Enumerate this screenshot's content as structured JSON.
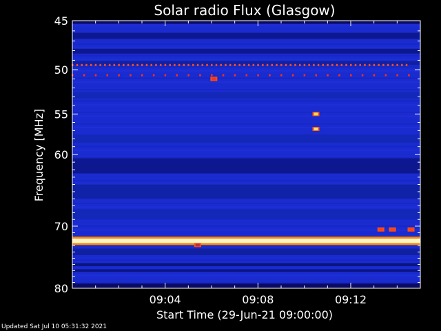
{
  "chart_data": {
    "type": "heatmap",
    "title": "Solar radio Flux (Glasgow)",
    "xlabel": "Start Time (29-Jun-21 09:00:00)",
    "ylabel": "Frequency [MHz]",
    "x_ticks": [
      "09:04",
      "09:08",
      "09:12"
    ],
    "x_tick_minutes": [
      4,
      8,
      12
    ],
    "x_range_minutes": [
      0,
      15
    ],
    "y_ticks": [
      45,
      50,
      55,
      60,
      70,
      80
    ],
    "y_range": [
      45,
      80
    ],
    "y_scale": "log",
    "background_color": "#1a2bd0",
    "bands": [
      {
        "freq_start": 45.0,
        "freq_end": 45.3,
        "color": "#0a0a60"
      },
      {
        "freq_start": 46.2,
        "freq_end": 46.8,
        "color": "#0d1890"
      },
      {
        "freq_start": 47.8,
        "freq_end": 48.3,
        "color": "#0d1890"
      },
      {
        "freq_start": 49.1,
        "freq_end": 49.5,
        "color": "#1020a0"
      },
      {
        "freq_start": 52.5,
        "freq_end": 53.2,
        "color": "#1428b8"
      },
      {
        "freq_start": 57.5,
        "freq_end": 58.5,
        "color": "#1428b8"
      },
      {
        "freq_start": 60.5,
        "freq_end": 62.5,
        "color": "#0d1890"
      },
      {
        "freq_start": 64.0,
        "freq_end": 66.0,
        "color": "#1022a8"
      },
      {
        "freq_start": 67.5,
        "freq_end": 69.0,
        "color": "#1428b8"
      },
      {
        "freq_start": 73.5,
        "freq_end": 74.5,
        "color": "#1020a0"
      },
      {
        "freq_start": 75.8,
        "freq_end": 76.3,
        "color": "#0a1480"
      },
      {
        "freq_start": 76.8,
        "freq_end": 77.2,
        "color": "#0a1480"
      },
      {
        "freq_start": 79.2,
        "freq_end": 80.0,
        "color": "#0a0a60"
      }
    ],
    "bright_lines": [
      {
        "freq_start": 71.9,
        "freq_end": 72.6,
        "color": "#fff6c8"
      },
      {
        "freq_start": 71.6,
        "freq_end": 71.9,
        "color": "#ff8800"
      },
      {
        "freq_start": 72.6,
        "freq_end": 72.9,
        "color": "#ff8800"
      }
    ],
    "dotted_lines": [
      {
        "freq": 49.5,
        "t_start": 0.0,
        "t_end": 14.5,
        "spacing_minutes": 0.2,
        "color": "#ff5020"
      },
      {
        "freq": 50.6,
        "t_start": 0.0,
        "t_end": 14.5,
        "spacing_minutes": 0.5,
        "color": "#ff3010"
      }
    ],
    "spots": [
      {
        "t": 10.5,
        "freq": 55.0,
        "color": "#ffe060"
      },
      {
        "t": 10.5,
        "freq": 56.8,
        "color": "#ffe060"
      },
      {
        "t": 13.3,
        "freq": 70.5,
        "color": "#ff4020"
      },
      {
        "t": 13.8,
        "freq": 70.5,
        "color": "#ff4020"
      },
      {
        "t": 14.6,
        "freq": 70.5,
        "color": "#ff4020"
      },
      {
        "t": 6.1,
        "freq": 51.0,
        "color": "#ff3010"
      },
      {
        "t": 5.4,
        "freq": 72.9,
        "color": "#c03030"
      }
    ]
  },
  "footer": {
    "updated": "Updated Sat Jul 10 05:31:32 2021"
  }
}
